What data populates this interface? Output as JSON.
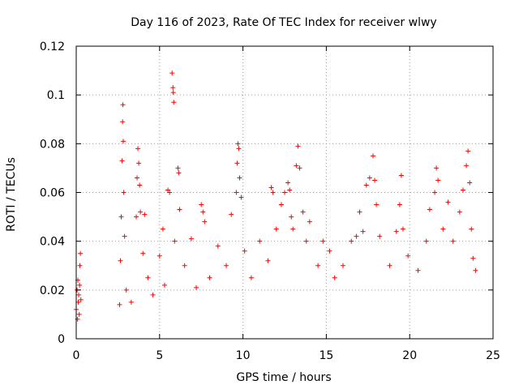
{
  "chart_data": {
    "type": "scatter",
    "title": "Day 116 of 2023, Rate Of TEC Index for receiver wlwy",
    "xlabel": "GPS time / hours",
    "ylabel": "ROTI / TECUs",
    "xlim": [
      0,
      25
    ],
    "ylim": [
      0,
      0.12
    ],
    "x_ticks": [
      0,
      5,
      10,
      15,
      20,
      25
    ],
    "x_tick_labels": [
      "0",
      "5",
      "10",
      "15",
      "20",
      "25"
    ],
    "y_ticks": [
      0,
      0.02,
      0.04,
      0.06,
      0.08,
      0.1,
      0.12
    ],
    "y_tick_labels": [
      "0",
      "0.02",
      "0.04",
      "0.06",
      "0.08",
      "0.1",
      "0.12"
    ],
    "grid": true,
    "legend": "none",
    "marker": "plus",
    "series": [
      {
        "color": "#ff0000",
        "points": [
          [
            0.0,
            0.012
          ],
          [
            0.05,
            0.02
          ],
          [
            0.08,
            0.008
          ],
          [
            0.1,
            0.024
          ],
          [
            0.12,
            0.015
          ],
          [
            0.15,
            0.018
          ],
          [
            0.18,
            0.01
          ],
          [
            0.2,
            0.022
          ],
          [
            0.22,
            0.03
          ],
          [
            0.25,
            0.035
          ],
          [
            0.28,
            0.016
          ],
          [
            2.6,
            0.014
          ],
          [
            2.65,
            0.032
          ],
          [
            2.7,
            0.05
          ],
          [
            2.75,
            0.073
          ],
          [
            2.78,
            0.089
          ],
          [
            2.8,
            0.096
          ],
          [
            2.82,
            0.081
          ],
          [
            2.85,
            0.06
          ],
          [
            2.9,
            0.042
          ],
          [
            3.0,
            0.02
          ],
          [
            3.3,
            0.015
          ],
          [
            3.6,
            0.05
          ],
          [
            3.65,
            0.066
          ],
          [
            3.7,
            0.078
          ],
          [
            3.75,
            0.072
          ],
          [
            3.8,
            0.063
          ],
          [
            3.85,
            0.052
          ],
          [
            4.0,
            0.035
          ],
          [
            4.1,
            0.051
          ],
          [
            4.3,
            0.025
          ],
          [
            4.6,
            0.018
          ],
          [
            5.0,
            0.034
          ],
          [
            5.2,
            0.045
          ],
          [
            5.3,
            0.022
          ],
          [
            5.5,
            0.061
          ],
          [
            5.6,
            0.06
          ],
          [
            5.75,
            0.109
          ],
          [
            5.8,
            0.103
          ],
          [
            5.82,
            0.101
          ],
          [
            5.85,
            0.097
          ],
          [
            5.9,
            0.04
          ],
          [
            6.1,
            0.07
          ],
          [
            6.15,
            0.068
          ],
          [
            6.2,
            0.053
          ],
          [
            6.5,
            0.03
          ],
          [
            6.9,
            0.041
          ],
          [
            7.2,
            0.021
          ],
          [
            7.5,
            0.055
          ],
          [
            7.6,
            0.052
          ],
          [
            7.7,
            0.048
          ],
          [
            8.0,
            0.025
          ],
          [
            8.5,
            0.038
          ],
          [
            9.0,
            0.03
          ],
          [
            9.3,
            0.051
          ],
          [
            9.6,
            0.06
          ],
          [
            9.65,
            0.072
          ],
          [
            9.7,
            0.08
          ],
          [
            9.75,
            0.078
          ],
          [
            9.8,
            0.066
          ],
          [
            9.9,
            0.058
          ],
          [
            10.1,
            0.036
          ],
          [
            10.5,
            0.025
          ],
          [
            11.0,
            0.04
          ],
          [
            11.5,
            0.032
          ],
          [
            11.7,
            0.062
          ],
          [
            11.8,
            0.06
          ],
          [
            12.0,
            0.045
          ],
          [
            12.3,
            0.055
          ],
          [
            12.5,
            0.06
          ],
          [
            12.7,
            0.064
          ],
          [
            12.8,
            0.061
          ],
          [
            12.9,
            0.05
          ],
          [
            13.0,
            0.045
          ],
          [
            13.2,
            0.071
          ],
          [
            13.3,
            0.079
          ],
          [
            13.4,
            0.07
          ],
          [
            13.6,
            0.052
          ],
          [
            13.8,
            0.04
          ],
          [
            14.0,
            0.048
          ],
          [
            14.5,
            0.03
          ],
          [
            14.8,
            0.04
          ],
          [
            15.2,
            0.036
          ],
          [
            15.5,
            0.025
          ],
          [
            16.0,
            0.03
          ],
          [
            16.5,
            0.04
          ],
          [
            16.8,
            0.042
          ],
          [
            17.0,
            0.052
          ],
          [
            17.2,
            0.044
          ],
          [
            17.4,
            0.063
          ],
          [
            17.6,
            0.066
          ],
          [
            17.8,
            0.075
          ],
          [
            17.9,
            0.065
          ],
          [
            18.0,
            0.055
          ],
          [
            18.2,
            0.042
          ],
          [
            18.8,
            0.03
          ],
          [
            19.2,
            0.044
          ],
          [
            19.4,
            0.055
          ],
          [
            19.5,
            0.067
          ],
          [
            19.6,
            0.045
          ],
          [
            19.9,
            0.034
          ],
          [
            20.5,
            0.028
          ],
          [
            21.0,
            0.04
          ],
          [
            21.2,
            0.053
          ],
          [
            21.5,
            0.06
          ],
          [
            21.6,
            0.07
          ],
          [
            21.7,
            0.065
          ],
          [
            22.0,
            0.045
          ],
          [
            22.3,
            0.056
          ],
          [
            22.6,
            0.04
          ],
          [
            23.0,
            0.052
          ],
          [
            23.2,
            0.061
          ],
          [
            23.4,
            0.071
          ],
          [
            23.5,
            0.077
          ],
          [
            23.6,
            0.064
          ],
          [
            23.7,
            0.045
          ],
          [
            23.8,
            0.033
          ],
          [
            23.95,
            0.028
          ]
        ]
      }
    ]
  }
}
